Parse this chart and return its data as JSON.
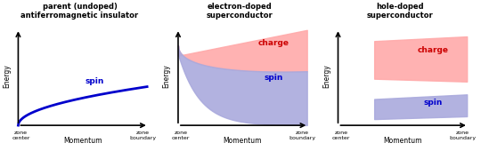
{
  "panels": [
    {
      "title": "parent (undoped)\nantiferromagnetic insulator",
      "spin_label": "spin",
      "charge_label": null,
      "spin_color": "#0000cc",
      "charge_color": null,
      "spin_fill": null,
      "charge_fill": null,
      "type": "undoped"
    },
    {
      "title": "electron-doped\nsuperconductor",
      "spin_label": "spin",
      "charge_label": "charge",
      "spin_color": "#0000cc",
      "charge_color": "#cc0000",
      "spin_fill": "#aaaadd",
      "charge_fill": "#ffaaaa",
      "type": "electron"
    },
    {
      "title": "hole-doped\nsuperconductor",
      "spin_label": "spin",
      "charge_label": "charge",
      "spin_color": "#0000cc",
      "charge_color": "#cc0000",
      "spin_fill": "#aaaadd",
      "charge_fill": "#ffaaaa",
      "type": "hole"
    }
  ],
  "xlabel": "Momentum",
  "ylabel": "Energy",
  "xtick_left": "zone\ncenter",
  "xtick_right": "zone\nboundary",
  "background": "#ffffff"
}
